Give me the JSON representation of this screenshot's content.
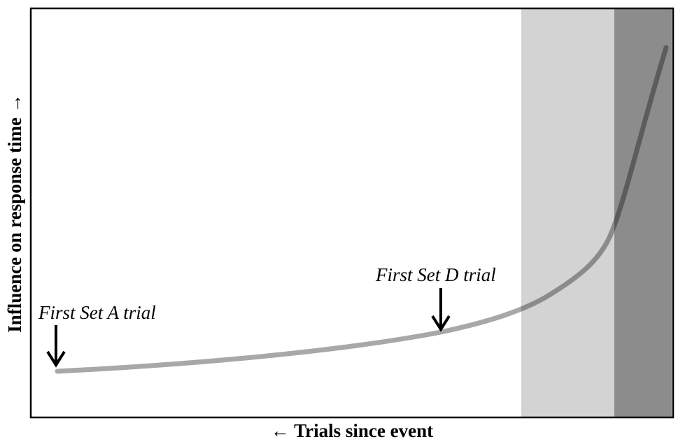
{
  "x_label": "← Trials since event",
  "y_label": "Influence on response time →",
  "annotations": [
    "First Set A trial",
    "First Set D trial"
  ]
}
